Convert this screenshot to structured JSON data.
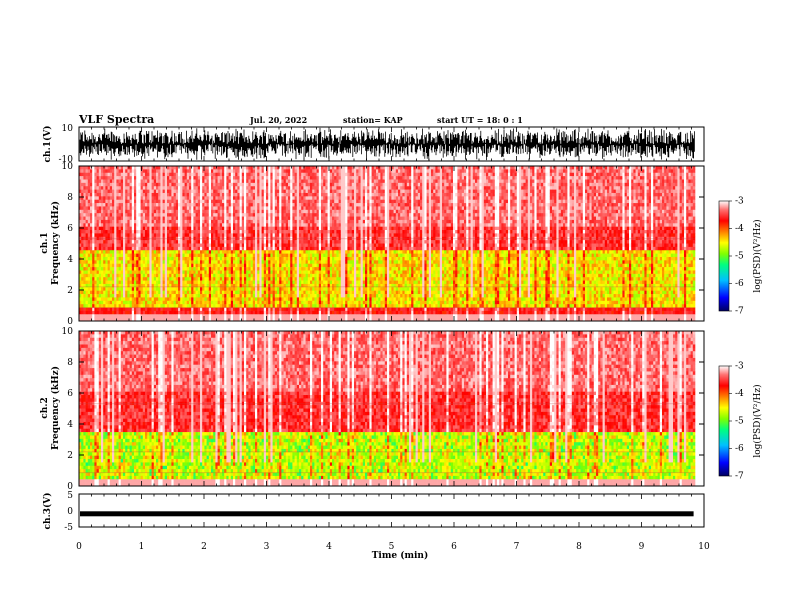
{
  "header": {
    "title": "VLF Spectra",
    "date": "Jul. 20, 2022",
    "station": "station= KAP",
    "start": "start UT = 18: 0 : 1"
  },
  "chart_data": [
    {
      "type": "line",
      "ylabel": "ch.1(V)",
      "ylim": [
        -10,
        10
      ],
      "y_ticks": [
        "10",
        "-10"
      ],
      "xlim": [
        0,
        10
      ],
      "description_level": "dense noisy waveform spanning near full range"
    },
    {
      "type": "heatmap",
      "ylabel": "ch.1 Frequency (kHz)",
      "ylim": [
        0,
        10
      ],
      "y_ticks": [
        "10",
        "8",
        "6",
        "4",
        "2",
        "0"
      ],
      "xlim": [
        0,
        10
      ],
      "data_end_min": 9.85,
      "band_low_kHz": [
        0.8,
        4.5
      ],
      "colorbar": {
        "label": "log(PSD)(V²/Hz)",
        "range": [
          -7,
          -3
        ],
        "ticks": [
          "-3",
          "-4",
          "-5",
          "-6",
          "-7"
        ]
      }
    },
    {
      "type": "heatmap",
      "ylabel": "ch.2 Frequency (kHz)",
      "ylim": [
        0,
        10
      ],
      "y_ticks": [
        "10",
        "8",
        "6",
        "4",
        "2",
        "0"
      ],
      "xlim": [
        0,
        10
      ],
      "data_end_min": 9.85,
      "band_low_kHz": [
        0.5,
        3.5
      ],
      "colorbar": {
        "label": "log(PSD)(V²/Hz)",
        "range": [
          -7,
          -3
        ],
        "ticks": [
          "-3",
          "-4",
          "-5",
          "-6",
          "-7"
        ]
      }
    },
    {
      "type": "line",
      "ylabel": "ch.3(V)",
      "ylim": [
        -5,
        5
      ],
      "y_ticks": [
        "5",
        "0",
        "-5"
      ],
      "xlim": [
        0,
        10
      ],
      "level": -1
    }
  ],
  "x_axis": {
    "label": "Time (min)",
    "ticks": [
      "0",
      "1",
      "2",
      "3",
      "4",
      "5",
      "6",
      "7",
      "8",
      "9",
      "10"
    ]
  },
  "colors": {
    "colormap": [
      "#000080",
      "#0000ff",
      "#00c0ff",
      "#00ff60",
      "#80ff00",
      "#ffff00",
      "#ff8000",
      "#ff0000",
      "#ff6060",
      "#ffffff"
    ]
  }
}
